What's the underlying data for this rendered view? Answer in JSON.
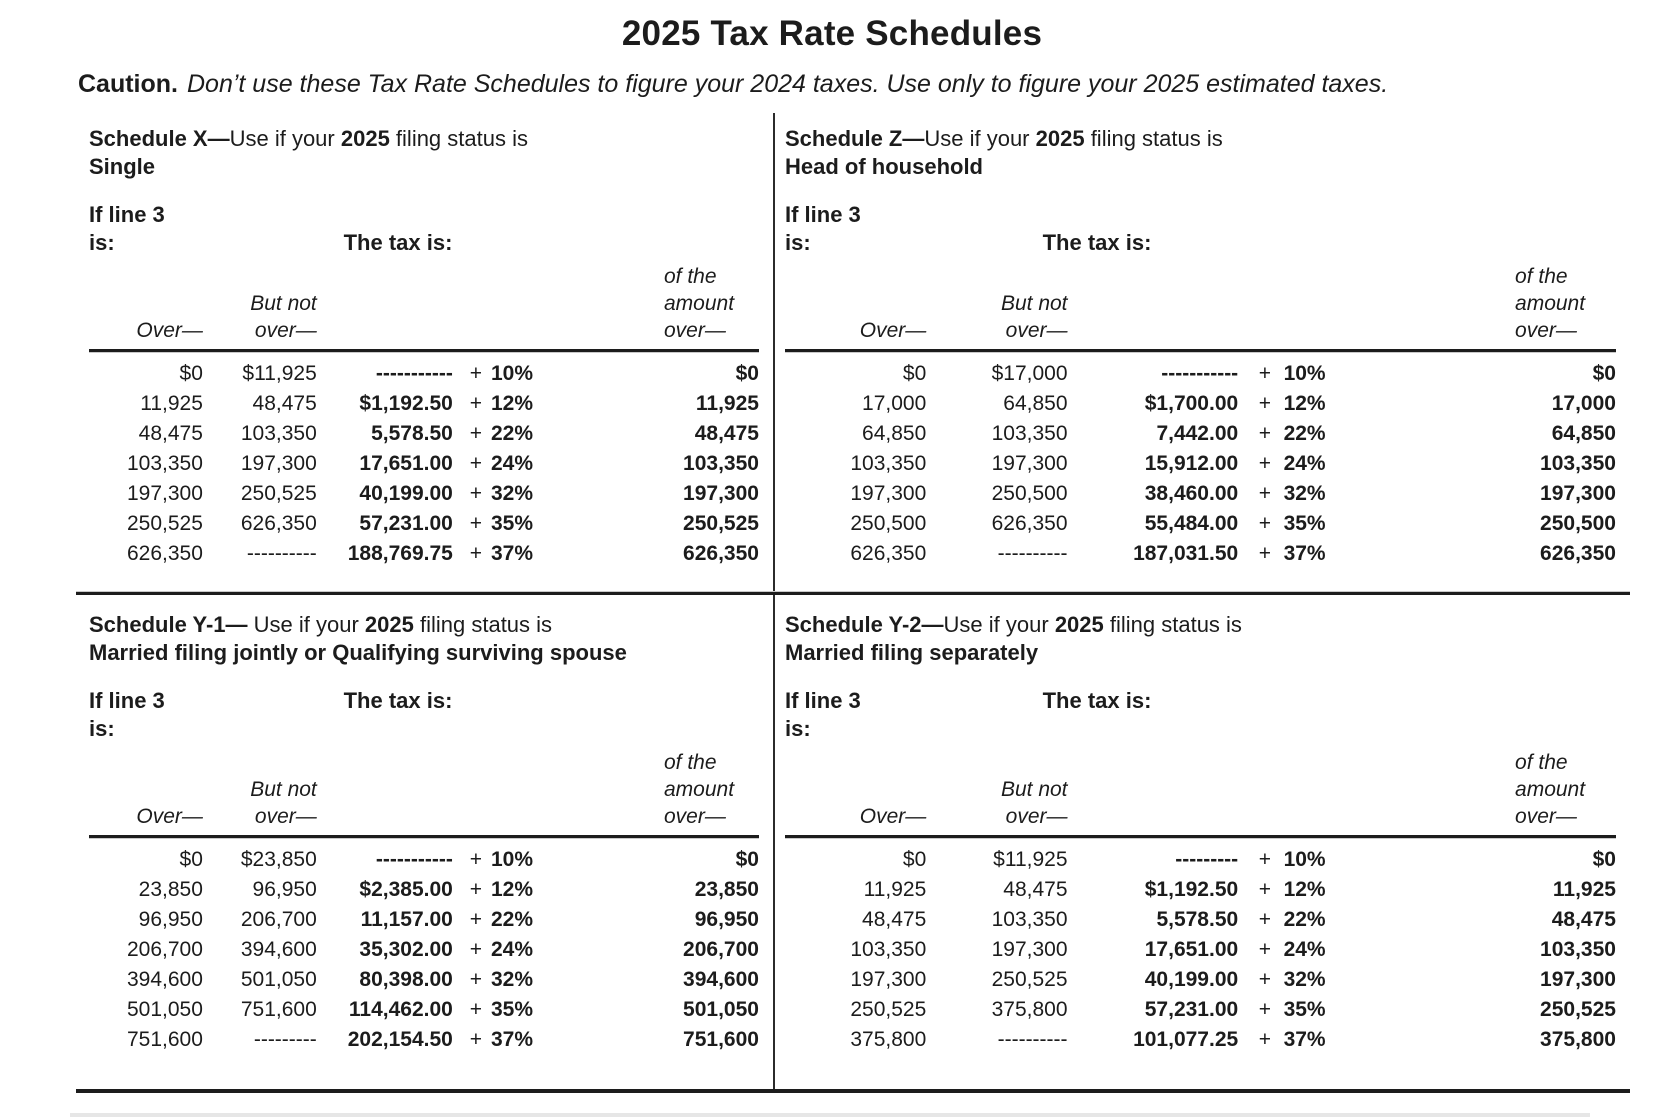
{
  "page": {
    "title": "2025 Tax Rate Schedules",
    "caution_label": "Caution.",
    "caution_text": "Don’t use these Tax Rate Schedules to figure your 2024 taxes. Use only to figure your 2025 estimated taxes."
  },
  "labels": {
    "if_line_1": "If line 3",
    "if_line_2": "is:",
    "tax_is": "The tax is:",
    "over": "Over—",
    "but_not_1": "But not",
    "but_not_2": "over—",
    "of_amount_1": "of the",
    "of_amount_2": "amount",
    "of_amount_3": "over—"
  },
  "schedules": [
    {
      "id": "X",
      "title_prefix": "Schedule X—",
      "title_mid": "Use if your ",
      "title_year": "2025",
      "title_suffix": " filing status is",
      "subtitle": "Single",
      "rows": [
        {
          "over": "$0",
          "butnot": "$11,925",
          "tax": "-----------",
          "plus": "+",
          "rate": "10%",
          "of": "$0"
        },
        {
          "over": "11,925",
          "butnot": "48,475",
          "tax": "$1,192.50",
          "plus": "+",
          "rate": "12%",
          "of": "11,925"
        },
        {
          "over": "48,475",
          "butnot": "103,350",
          "tax": "5,578.50",
          "plus": "+",
          "rate": "22%",
          "of": "48,475"
        },
        {
          "over": "103,350",
          "butnot": "197,300",
          "tax": "17,651.00",
          "plus": "+",
          "rate": "24%",
          "of": "103,350"
        },
        {
          "over": "197,300",
          "butnot": "250,525",
          "tax": "40,199.00",
          "plus": "+",
          "rate": "32%",
          "of": "197,300"
        },
        {
          "over": "250,525",
          "butnot": "626,350",
          "tax": "57,231.00",
          "plus": "+",
          "rate": "35%",
          "of": "250,525"
        },
        {
          "over": "626,350",
          "butnot": "----------",
          "tax": "188,769.75",
          "plus": "+",
          "rate": "37%",
          "of": "626,350"
        }
      ]
    },
    {
      "id": "Z",
      "title_prefix": "Schedule Z—",
      "title_mid": "Use if your ",
      "title_year": "2025",
      "title_suffix": " filing status is",
      "subtitle": "Head of household",
      "rows": [
        {
          "over": "$0",
          "butnot": "$17,000",
          "tax": "-----------",
          "plus": "+",
          "rate": "10%",
          "of": "$0"
        },
        {
          "over": "17,000",
          "butnot": "64,850",
          "tax": "$1,700.00",
          "plus": "+",
          "rate": "12%",
          "of": "17,000"
        },
        {
          "over": "64,850",
          "butnot": "103,350",
          "tax": "7,442.00",
          "plus": "+",
          "rate": "22%",
          "of": "64,850"
        },
        {
          "over": "103,350",
          "butnot": "197,300",
          "tax": "15,912.00",
          "plus": "+",
          "rate": "24%",
          "of": "103,350"
        },
        {
          "over": "197,300",
          "butnot": "250,500",
          "tax": "38,460.00",
          "plus": "+",
          "rate": "32%",
          "of": "197,300"
        },
        {
          "over": "250,500",
          "butnot": "626,350",
          "tax": "55,484.00",
          "plus": "+",
          "rate": "35%",
          "of": "250,500"
        },
        {
          "over": "626,350",
          "butnot": "----------",
          "tax": "187,031.50",
          "plus": "+",
          "rate": "37%",
          "of": "626,350"
        }
      ]
    },
    {
      "id": "Y-1",
      "title_prefix": "Schedule Y-1—",
      "title_mid": " Use if your ",
      "title_year": "2025",
      "title_suffix": " filing status is",
      "subtitle": "Married filing jointly or Qualifying surviving spouse",
      "rows": [
        {
          "over": "$0",
          "butnot": "$23,850",
          "tax": "-----------",
          "plus": "+",
          "rate": "10%",
          "of": "$0"
        },
        {
          "over": "23,850",
          "butnot": "96,950",
          "tax": "$2,385.00",
          "plus": "+",
          "rate": "12%",
          "of": "23,850"
        },
        {
          "over": "96,950",
          "butnot": "206,700",
          "tax": "11,157.00",
          "plus": "+",
          "rate": "22%",
          "of": "96,950"
        },
        {
          "over": "206,700",
          "butnot": "394,600",
          "tax": "35,302.00",
          "plus": "+",
          "rate": "24%",
          "of": "206,700"
        },
        {
          "over": "394,600",
          "butnot": "501,050",
          "tax": "80,398.00",
          "plus": "+",
          "rate": "32%",
          "of": "394,600"
        },
        {
          "over": "501,050",
          "butnot": "751,600",
          "tax": "114,462.00",
          "plus": "+",
          "rate": "35%",
          "of": "501,050"
        },
        {
          "over": "751,600",
          "butnot": "---------",
          "tax": "202,154.50",
          "plus": "+",
          "rate": "37%",
          "of": "751,600"
        }
      ]
    },
    {
      "id": "Y-2",
      "title_prefix": "Schedule Y-2—",
      "title_mid": "Use if your ",
      "title_year": "2025",
      "title_suffix": " filing status is",
      "subtitle": "Married filing separately",
      "rows": [
        {
          "over": "$0",
          "butnot": "$11,925",
          "tax": "---------",
          "plus": "+",
          "rate": "10%",
          "of": "$0"
        },
        {
          "over": "11,925",
          "butnot": "48,475",
          "tax": "$1,192.50",
          "plus": "+",
          "rate": "12%",
          "of": "11,925"
        },
        {
          "over": "48,475",
          "butnot": "103,350",
          "tax": "5,578.50",
          "plus": "+",
          "rate": "22%",
          "of": "48,475"
        },
        {
          "over": "103,350",
          "butnot": "197,300",
          "tax": "17,651.00",
          "plus": "+",
          "rate": "24%",
          "of": "103,350"
        },
        {
          "over": "197,300",
          "butnot": "250,525",
          "tax": "40,199.00",
          "plus": "+",
          "rate": "32%",
          "of": "197,300"
        },
        {
          "over": "250,525",
          "butnot": "375,800",
          "tax": "57,231.00",
          "plus": "+",
          "rate": "35%",
          "of": "250,525"
        },
        {
          "over": "375,800",
          "butnot": "----------",
          "tax": "101,077.25",
          "plus": "+",
          "rate": "37%",
          "of": "375,800"
        }
      ]
    }
  ]
}
